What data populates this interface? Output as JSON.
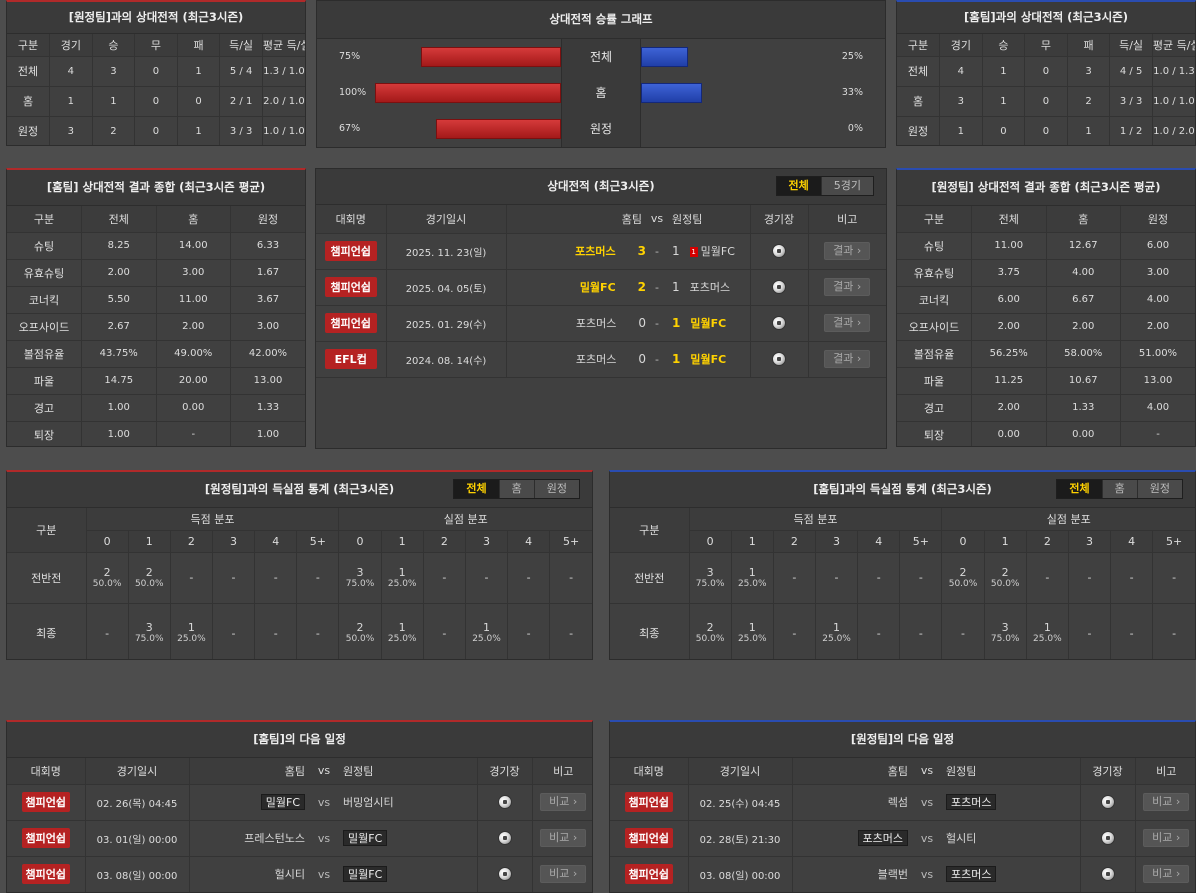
{
  "away_h2h": {
    "title": "[원정팀]과의 상대전적 (최근3시즌)",
    "headers": [
      "구분",
      "경기",
      "승",
      "무",
      "패",
      "득/실",
      "평균 득/실"
    ],
    "rows": [
      [
        "전체",
        "4",
        "3",
        "0",
        "1",
        "5 / 4",
        "1.3 / 1.0"
      ],
      [
        "홈",
        "1",
        "1",
        "0",
        "0",
        "2 / 1",
        "2.0 / 1.0"
      ],
      [
        "원정",
        "3",
        "2",
        "0",
        "1",
        "3 / 3",
        "1.0 / 1.0"
      ]
    ]
  },
  "winrate_graph": {
    "title": "상대전적 승률 그래프",
    "rows": [
      {
        "label": "전체",
        "left_pct": "75%",
        "right_pct": "25%",
        "left": 75,
        "right": 25
      },
      {
        "label": "홈",
        "left_pct": "100%",
        "right_pct": "33%",
        "left": 100,
        "right": 33
      },
      {
        "label": "원정",
        "left_pct": "67%",
        "right_pct": "0%",
        "left": 67,
        "right": 0
      }
    ]
  },
  "home_h2h": {
    "title": "[홈팀]과의 상대전적 (최근3시즌)",
    "headers": [
      "구분",
      "경기",
      "승",
      "무",
      "패",
      "득/실",
      "평균 득/실"
    ],
    "rows": [
      [
        "전체",
        "4",
        "1",
        "0",
        "3",
        "4 / 5",
        "1.0 / 1.3"
      ],
      [
        "홈",
        "3",
        "1",
        "0",
        "2",
        "3 / 3",
        "1.0 / 1.0"
      ],
      [
        "원정",
        "1",
        "0",
        "0",
        "1",
        "1 / 2",
        "1.0 / 2.0"
      ]
    ]
  },
  "home_summary": {
    "title": "[홈팀] 상대전적 결과 종합 (최근3시즌 평균)",
    "headers": [
      "구분",
      "전체",
      "홈",
      "원정"
    ],
    "rows": [
      [
        "슈팅",
        "8.25",
        "14.00",
        "6.33"
      ],
      [
        "유효슈팅",
        "2.00",
        "3.00",
        "1.67"
      ],
      [
        "코너킥",
        "5.50",
        "11.00",
        "3.67"
      ],
      [
        "오프사이드",
        "2.67",
        "2.00",
        "3.00"
      ],
      [
        "볼점유율",
        "43.75%",
        "49.00%",
        "42.00%"
      ],
      [
        "파울",
        "14.75",
        "20.00",
        "13.00"
      ],
      [
        "경고",
        "1.00",
        "0.00",
        "1.33"
      ],
      [
        "퇴장",
        "1.00",
        "-",
        "1.00"
      ]
    ]
  },
  "recent_matches": {
    "title": "상대전적 (최근3시즌)",
    "tabs": [
      "전체",
      "5경기"
    ],
    "headers": {
      "league": "대회명",
      "date": "경기일시",
      "home": "홈팀",
      "vs": "vs",
      "away": "원정팀",
      "stadium": "경기장",
      "note": "비고"
    },
    "rows": [
      {
        "league": "챔피언쉽",
        "date": "2025. 11. 23(일)",
        "home": "포츠머스",
        "hs": "3",
        "dash": "-",
        "as": "1",
        "away": "밀월FC",
        "card": "1",
        "btn": "결과"
      },
      {
        "league": "챔피언쉽",
        "date": "2025. 04. 05(토)",
        "home": "밀월FC",
        "hs": "2",
        "dash": "-",
        "as": "1",
        "away": "포츠머스",
        "card": "",
        "btn": "결과"
      },
      {
        "league": "챔피언쉽",
        "date": "2025. 01. 29(수)",
        "home": "포츠머스",
        "hs": "0",
        "dash": "-",
        "as": "1",
        "away": "밀월FC",
        "card": "",
        "btn": "결과"
      },
      {
        "league": "EFL컵",
        "date": "2024. 08. 14(수)",
        "home": "포츠머스",
        "hs": "0",
        "dash": "-",
        "as": "1",
        "away": "밀월FC",
        "card": "",
        "btn": "결과"
      }
    ]
  },
  "away_summary": {
    "title": "[원정팀] 상대전적 결과 종합 (최근3시즌 평균)",
    "headers": [
      "구분",
      "전체",
      "홈",
      "원정"
    ],
    "rows": [
      [
        "슈팅",
        "11.00",
        "12.67",
        "6.00"
      ],
      [
        "유효슈팅",
        "3.75",
        "4.00",
        "3.00"
      ],
      [
        "코너킥",
        "6.00",
        "6.67",
        "4.00"
      ],
      [
        "오프사이드",
        "2.00",
        "2.00",
        "2.00"
      ],
      [
        "볼점유율",
        "56.25%",
        "58.00%",
        "51.00%"
      ],
      [
        "파울",
        "11.25",
        "10.67",
        "13.00"
      ],
      [
        "경고",
        "2.00",
        "1.33",
        "4.00"
      ],
      [
        "퇴장",
        "0.00",
        "0.00",
        "-"
      ]
    ]
  },
  "away_goal_stats": {
    "title": "[원정팀]과의 득실점 통계 (최근3시즌)",
    "tabs": [
      "전체",
      "홈",
      "원정"
    ],
    "col_label": "구분",
    "group_for": "득점 분포",
    "group_against": "실점 분포",
    "cols": [
      "0",
      "1",
      "2",
      "3",
      "4",
      "5+"
    ],
    "rows": [
      {
        "label": "전반전",
        "for": [
          [
            "2",
            "50.0%"
          ],
          [
            "2",
            "50.0%"
          ],
          [
            "-",
            ""
          ],
          [
            "-",
            ""
          ],
          [
            "-",
            ""
          ],
          [
            "-",
            ""
          ]
        ],
        "against": [
          [
            "3",
            "75.0%"
          ],
          [
            "1",
            "25.0%"
          ],
          [
            "-",
            ""
          ],
          [
            "-",
            ""
          ],
          [
            "-",
            ""
          ],
          [
            "-",
            ""
          ]
        ]
      },
      {
        "label": "최종",
        "for": [
          [
            "-",
            ""
          ],
          [
            "3",
            "75.0%"
          ],
          [
            "1",
            "25.0%"
          ],
          [
            "-",
            ""
          ],
          [
            "-",
            ""
          ],
          [
            "-",
            ""
          ]
        ],
        "against": [
          [
            "2",
            "50.0%"
          ],
          [
            "1",
            "25.0%"
          ],
          [
            "-",
            ""
          ],
          [
            "1",
            "25.0%"
          ],
          [
            "-",
            ""
          ],
          [
            "-",
            ""
          ]
        ]
      }
    ]
  },
  "home_goal_stats": {
    "title": "[홈팀]과의 득실점 통계 (최근3시즌)",
    "tabs": [
      "전체",
      "홈",
      "원정"
    ],
    "col_label": "구분",
    "group_for": "득점 분포",
    "group_against": "실점 분포",
    "cols": [
      "0",
      "1",
      "2",
      "3",
      "4",
      "5+"
    ],
    "rows": [
      {
        "label": "전반전",
        "for": [
          [
            "3",
            "75.0%"
          ],
          [
            "1",
            "25.0%"
          ],
          [
            "-",
            ""
          ],
          [
            "-",
            ""
          ],
          [
            "-",
            ""
          ],
          [
            "-",
            ""
          ]
        ],
        "against": [
          [
            "2",
            "50.0%"
          ],
          [
            "2",
            "50.0%"
          ],
          [
            "-",
            ""
          ],
          [
            "-",
            ""
          ],
          [
            "-",
            ""
          ],
          [
            "-",
            ""
          ]
        ]
      },
      {
        "label": "최종",
        "for": [
          [
            "2",
            "50.0%"
          ],
          [
            "1",
            "25.0%"
          ],
          [
            "-",
            ""
          ],
          [
            "1",
            "25.0%"
          ],
          [
            "-",
            ""
          ],
          [
            "-",
            ""
          ]
        ],
        "against": [
          [
            "-",
            ""
          ],
          [
            "3",
            "75.0%"
          ],
          [
            "1",
            "25.0%"
          ],
          [
            "-",
            ""
          ],
          [
            "-",
            ""
          ],
          [
            "-",
            ""
          ]
        ]
      }
    ]
  },
  "home_next": {
    "title": "[홈팀]의 다음 일정",
    "headers": {
      "league": "대회명",
      "date": "경기일시",
      "home": "홈팀",
      "vs": "vs",
      "away": "원정팀",
      "stadium": "경기장",
      "note": "비고"
    },
    "rows": [
      {
        "league": "챔피언쉽",
        "date": "02. 26(목) 04:45",
        "home": "밀월FC",
        "home_hl": true,
        "vs": "vs",
        "away": "버밍엄시티",
        "away_hl": false,
        "btn": "비교"
      },
      {
        "league": "챔피언쉽",
        "date": "03. 01(일) 00:00",
        "home": "프레스턴노스",
        "home_hl": false,
        "vs": "vs",
        "away": "밀월FC",
        "away_hl": true,
        "btn": "비교"
      },
      {
        "league": "챔피언쉽",
        "date": "03. 08(일) 00:00",
        "home": "헐시티",
        "home_hl": false,
        "vs": "vs",
        "away": "밀월FC",
        "away_hl": true,
        "btn": "비교"
      }
    ]
  },
  "away_next": {
    "title": "[원정팀]의 다음 일정",
    "headers": {
      "league": "대회명",
      "date": "경기일시",
      "home": "홈팀",
      "vs": "vs",
      "away": "원정팀",
      "stadium": "경기장",
      "note": "비고"
    },
    "rows": [
      {
        "league": "챔피언쉽",
        "date": "02. 25(수) 04:45",
        "home": "렉섬",
        "home_hl": false,
        "vs": "vs",
        "away": "포츠머스",
        "away_hl": true,
        "btn": "비교"
      },
      {
        "league": "챔피언쉽",
        "date": "02. 28(토) 21:30",
        "home": "포츠머스",
        "home_hl": true,
        "vs": "vs",
        "away": "헐시티",
        "away_hl": false,
        "btn": "비교"
      },
      {
        "league": "챔피언쉽",
        "date": "03. 08(일) 00:00",
        "home": "블랙번",
        "home_hl": false,
        "vs": "vs",
        "away": "포츠머스",
        "away_hl": true,
        "btn": "비교"
      }
    ]
  },
  "colors": {
    "accent_yellow": "#ffd200",
    "badge_red": "#b52222",
    "bar_red": "#c42a2a",
    "bar_blue": "#2f52c4",
    "home_border": "#b02a2a",
    "away_border": "#2a4cb0"
  }
}
